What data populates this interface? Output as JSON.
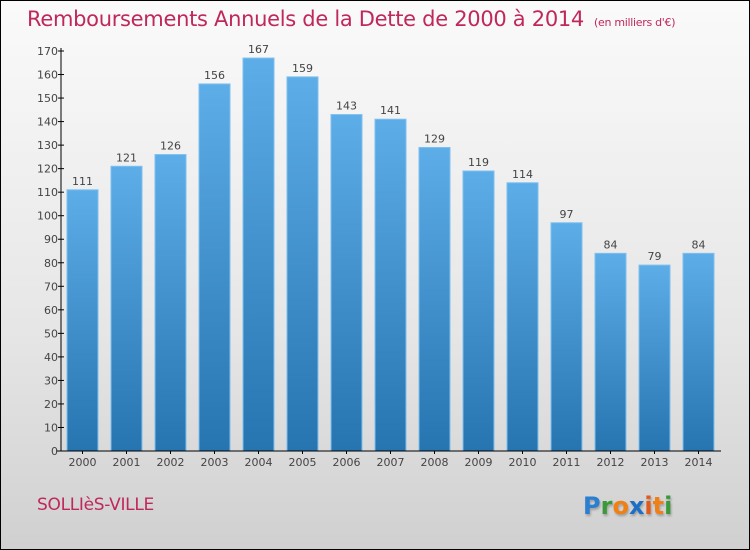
{
  "header": {
    "title": "Remboursements Annuels de la Dette de 2000 à 2014",
    "unit": "(en milliers d'€)"
  },
  "footer": {
    "city": "SOLLIèS-VILLE",
    "logo_letters": [
      "P",
      "r",
      "o",
      "x",
      "i",
      "t",
      "i"
    ]
  },
  "colors": {
    "title": "#c0275a",
    "bar_top": "#5dade8",
    "bar_bottom": "#2674b0"
  },
  "chart_data": {
    "type": "bar",
    "title": "Remboursements Annuels de la Dette de 2000 à 2014",
    "subtitle": "(en milliers d'€)",
    "xlabel": "",
    "ylabel": "",
    "categories": [
      "2000",
      "2001",
      "2002",
      "2003",
      "2004",
      "2005",
      "2006",
      "2007",
      "2008",
      "2009",
      "2010",
      "2011",
      "2012",
      "2013",
      "2014"
    ],
    "values": [
      111,
      121,
      126,
      156,
      167,
      159,
      143,
      141,
      129,
      119,
      114,
      97,
      84,
      79,
      84
    ],
    "ylim": [
      0,
      170
    ],
    "yticks": [
      0,
      10,
      20,
      30,
      40,
      50,
      60,
      70,
      80,
      90,
      100,
      110,
      120,
      130,
      140,
      150,
      160,
      170
    ],
    "grid": false,
    "legend": "none"
  }
}
